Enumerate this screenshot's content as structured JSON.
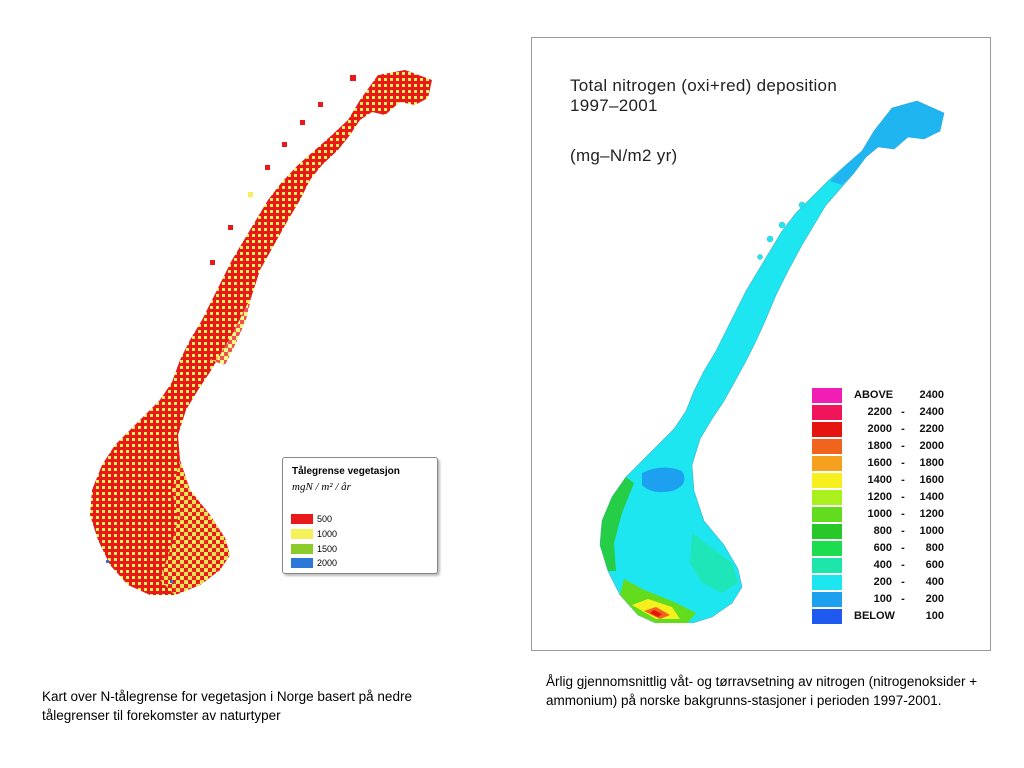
{
  "left_legend": {
    "title": "Tålegrense vegetasjon",
    "unit": "mgN / m² / år",
    "items": [
      {
        "label": "500",
        "color": "#e8191b"
      },
      {
        "label": "1000",
        "color": "#f4f15a"
      },
      {
        "label": "1500",
        "color": "#8ccc2a"
      },
      {
        "label": "2000",
        "color": "#2a78d8"
      }
    ]
  },
  "right_panel": {
    "title_line1": "Total nitrogen (oxi+red) deposition",
    "title_line2": "1997–2001",
    "unit": "(mg–N/m2 yr)",
    "legend": [
      {
        "from": "ABOVE",
        "sep": "",
        "to": "2400",
        "color": "#f01eb4"
      },
      {
        "from": "2200",
        "sep": "-",
        "to": "2400",
        "color": "#f0145a"
      },
      {
        "from": "2000",
        "sep": "-",
        "to": "2200",
        "color": "#e6140f"
      },
      {
        "from": "1800",
        "sep": "-",
        "to": "2000",
        "color": "#f0641e"
      },
      {
        "from": "1600",
        "sep": "-",
        "to": "1800",
        "color": "#f5a01e"
      },
      {
        "from": "1400",
        "sep": "-",
        "to": "1600",
        "color": "#f5f01e"
      },
      {
        "from": "1200",
        "sep": "-",
        "to": "1400",
        "color": "#aaf01e"
      },
      {
        "from": "1000",
        "sep": "-",
        "to": "1200",
        "color": "#64dc1e"
      },
      {
        "from": "800",
        "sep": "-",
        "to": "1000",
        "color": "#28c828"
      },
      {
        "from": "600",
        "sep": "-",
        "to": "800",
        "color": "#1edc50"
      },
      {
        "from": "400",
        "sep": "-",
        "to": "600",
        "color": "#1ee6aa"
      },
      {
        "from": "200",
        "sep": "-",
        "to": "400",
        "color": "#1ee6f0"
      },
      {
        "from": "100",
        "sep": "-",
        "to": "200",
        "color": "#1ea0f0"
      },
      {
        "from": "BELOW",
        "sep": "",
        "to": "100",
        "color": "#1e5af0"
      }
    ]
  },
  "captions": {
    "left": "Kart over N-tålegrense for vegetasjon i Norge basert på nedre tålegrenser til forekomster av naturtyper",
    "right": "Årlig gjennomsnittlig våt- og tørravsetning av nitrogen (nitrogenoksider + ammonium) på norske bakgrunns-stasjoner i perioden 1997-2001."
  }
}
